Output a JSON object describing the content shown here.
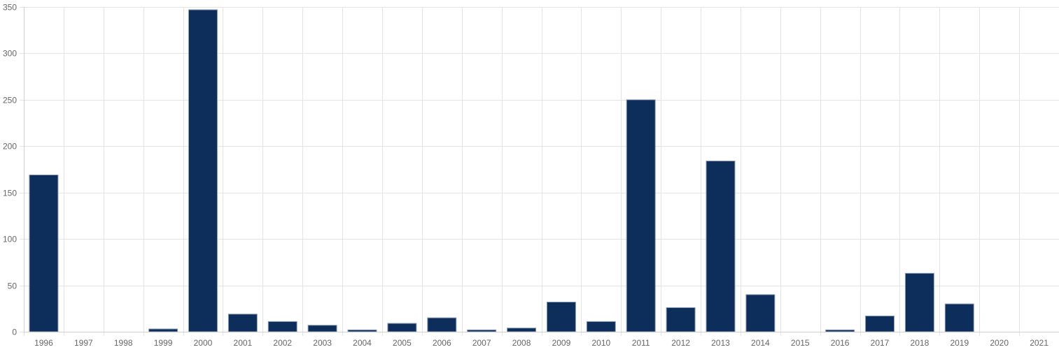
{
  "chart_data": {
    "type": "bar",
    "title": "",
    "xlabel": "",
    "ylabel": "",
    "categories": [
      "1996",
      "1997",
      "1998",
      "1999",
      "2000",
      "2001",
      "2002",
      "2003",
      "2004",
      "2005",
      "2006",
      "2007",
      "2008",
      "2009",
      "2010",
      "2011",
      "2012",
      "2013",
      "2014",
      "2015",
      "2016",
      "2017",
      "2018",
      "2019",
      "2020",
      "2021"
    ],
    "values": [
      169,
      0,
      0,
      3,
      347,
      19,
      11,
      7,
      2,
      9,
      15,
      2,
      4,
      32,
      11,
      250,
      26,
      184,
      40,
      0,
      2,
      17,
      63,
      30,
      0,
      0
    ],
    "ylim": [
      0,
      350
    ],
    "yticks": [
      0,
      50,
      100,
      150,
      200,
      250,
      300,
      350
    ],
    "grid": true,
    "legend": "none",
    "bar_color": "#0d2d5a"
  }
}
